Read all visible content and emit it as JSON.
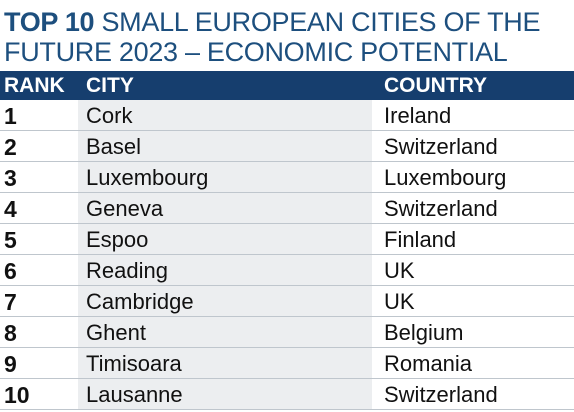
{
  "title": {
    "bold_part": "TOP 10",
    "rest": " SMALL EUROPEAN CITIES OF THE FUTURE 2023 – ECONOMIC POTENTIAL"
  },
  "table": {
    "headers": {
      "rank": "RANK",
      "city": "CITY",
      "country": "COUNTRY"
    },
    "rows": [
      {
        "rank": "1",
        "city": "Cork",
        "country": "Ireland"
      },
      {
        "rank": "2",
        "city": "Basel",
        "country": "Switzerland"
      },
      {
        "rank": "3",
        "city": "Luxembourg",
        "country": "Luxembourg"
      },
      {
        "rank": "4",
        "city": "Geneva",
        "country": "Switzerland"
      },
      {
        "rank": "5",
        "city": "Espoo",
        "country": "Finland"
      },
      {
        "rank": "6",
        "city": "Reading",
        "country": "UK"
      },
      {
        "rank": "7",
        "city": "Cambridge",
        "country": "UK"
      },
      {
        "rank": "8",
        "city": "Ghent",
        "country": "Belgium"
      },
      {
        "rank": "9",
        "city": "Timisoara",
        "country": "Romania"
      },
      {
        "rank": "10",
        "city": "Lausanne",
        "country": "Switzerland"
      }
    ]
  },
  "colors": {
    "title": "#1d4f7e",
    "header_bg": "#163e6e",
    "city_column_bg": "#eceef0",
    "row_divider": "#bfc6cd"
  }
}
